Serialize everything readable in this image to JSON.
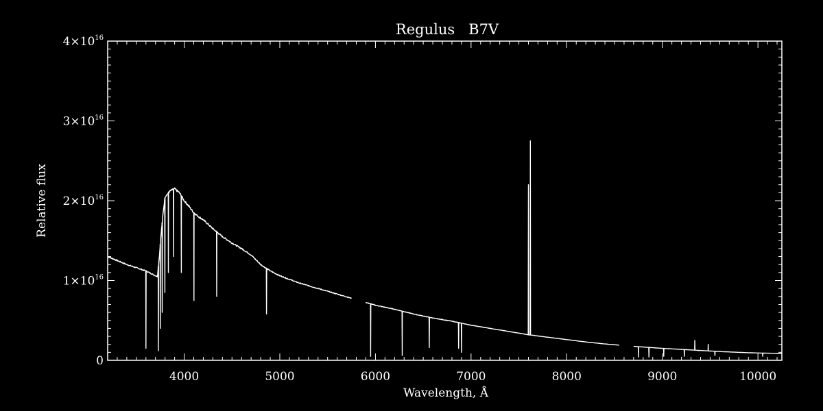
{
  "chart_data": {
    "type": "line",
    "title": "Regulus   B7V",
    "xlabel": "Wavelength, Å",
    "ylabel": "Relative flux",
    "xlim": [
      3200,
      10250
    ],
    "ylim": [
      0,
      4e+16
    ],
    "x_ticks": [
      {
        "value": 4000,
        "label": "4000"
      },
      {
        "value": 5000,
        "label": "5000"
      },
      {
        "value": 6000,
        "label": "6000"
      },
      {
        "value": 7000,
        "label": "7000"
      },
      {
        "value": 8000,
        "label": "8000"
      },
      {
        "value": 9000,
        "label": "9000"
      },
      {
        "value": 10000,
        "label": "10000"
      }
    ],
    "y_ticks": [
      {
        "value": 0,
        "mantissa": "0",
        "exponent": ""
      },
      {
        "value": 1e+16,
        "mantissa": "1×10",
        "exponent": "16"
      },
      {
        "value": 2e+16,
        "mantissa": "2×10",
        "exponent": "16"
      },
      {
        "value": 3e+16,
        "mantissa": "3×10",
        "exponent": "16"
      },
      {
        "value": 4e+16,
        "mantissa": "4×10",
        "exponent": "16"
      }
    ],
    "grid": false,
    "color": "#ffffff",
    "series": [
      {
        "continuum": [
          [
            3200,
            1.3e+16
          ],
          [
            3400,
            1.2e+16
          ],
          [
            3600,
            1.12e+16
          ],
          [
            3700,
            1.06e+16
          ],
          [
            3720,
            1.05e+16
          ],
          [
            3740,
            1.3e+16
          ],
          [
            3760,
            1.6e+16
          ],
          [
            3780,
            1.85e+16
          ],
          [
            3800,
            2.05e+16
          ],
          [
            3850,
            2.12e+16
          ],
          [
            3900,
            2.15e+16
          ],
          [
            3950,
            2.1e+16
          ],
          [
            4000,
            2e+16
          ],
          [
            4050,
            1.93e+16
          ],
          [
            4100,
            1.85e+16
          ],
          [
            4150,
            1.8e+16
          ],
          [
            4200,
            1.76e+16
          ],
          [
            4300,
            1.65e+16
          ],
          [
            4400,
            1.55e+16
          ],
          [
            4500,
            1.47e+16
          ],
          [
            4600,
            1.4e+16
          ],
          [
            4700,
            1.32e+16
          ],
          [
            4800,
            1.2e+16
          ],
          [
            4900,
            1.12e+16
          ],
          [
            5000,
            1.06e+16
          ],
          [
            5200,
            9700000000000000.0
          ],
          [
            5400,
            9000000000000000.0
          ],
          [
            5600,
            8300000000000000.0
          ],
          [
            5800,
            7600000000000000.0
          ],
          [
            6000,
            6900000000000000.0
          ],
          [
            6200,
            6400000000000000.0
          ],
          [
            6400,
            5800000000000000.0
          ],
          [
            6600,
            5300000000000000.0
          ],
          [
            6800,
            4900000000000000.0
          ],
          [
            7000,
            4400000000000000.0
          ],
          [
            7200,
            4000000000000000.0
          ],
          [
            7400,
            3600000000000000.0
          ],
          [
            7600,
            3200000000000000.0
          ],
          [
            7800,
            2900000000000000.0
          ],
          [
            8000,
            2600000000000000.0
          ],
          [
            8200,
            2300000000000000.0
          ],
          [
            8400,
            2050000000000000.0
          ],
          [
            8550,
            1900000000000000.0
          ],
          [
            8700,
            1750000000000000.0
          ],
          [
            9000,
            1500000000000000.0
          ],
          [
            9300,
            1300000000000000.0
          ],
          [
            9600,
            1100000000000000.0
          ],
          [
            9900,
            950000000000000.0
          ],
          [
            10250,
            850000000000000.0
          ]
        ],
        "gaps": [
          [
            5750,
            5900
          ],
          [
            8550,
            8700
          ]
        ],
        "absorption_lines": [
          [
            3730,
            1200000000000000.0
          ],
          [
            3750,
            4000000000000000.0
          ],
          [
            3770,
            6000000000000000.0
          ],
          [
            3798,
            8500000000000000.0
          ],
          [
            3835,
            1.1e+16
          ],
          [
            3889,
            1.3e+16
          ],
          [
            3970,
            1.1e+16
          ],
          [
            4102,
            7500000000000000.0
          ],
          [
            4340,
            8000000000000000.0
          ],
          [
            4861,
            5800000000000000.0
          ],
          [
            6563,
            1600000000000000.0
          ],
          [
            6870,
            1500000000000000.0
          ],
          [
            8750,
            400000000000000.0
          ],
          [
            8860,
            400000000000000.0
          ],
          [
            9015,
            500000000000000.0
          ],
          [
            9230,
            500000000000000.0
          ],
          [
            9550,
            600000000000000.0
          ],
          [
            10050,
            500000000000000.0
          ]
        ],
        "emission_spikes": [
          [
            3600,
            1500000000000000.0
          ],
          [
            5950,
            500000000000000.0
          ],
          [
            6280,
            600000000000000.0
          ],
          [
            6900,
            1000000000000000.0
          ],
          [
            7600,
            2.2e+16
          ],
          [
            7620,
            2.75e+16
          ],
          [
            9340,
            2500000000000000.0
          ],
          [
            9380,
            1200000000000000.0
          ],
          [
            9480,
            2000000000000000.0
          ]
        ]
      }
    ]
  }
}
